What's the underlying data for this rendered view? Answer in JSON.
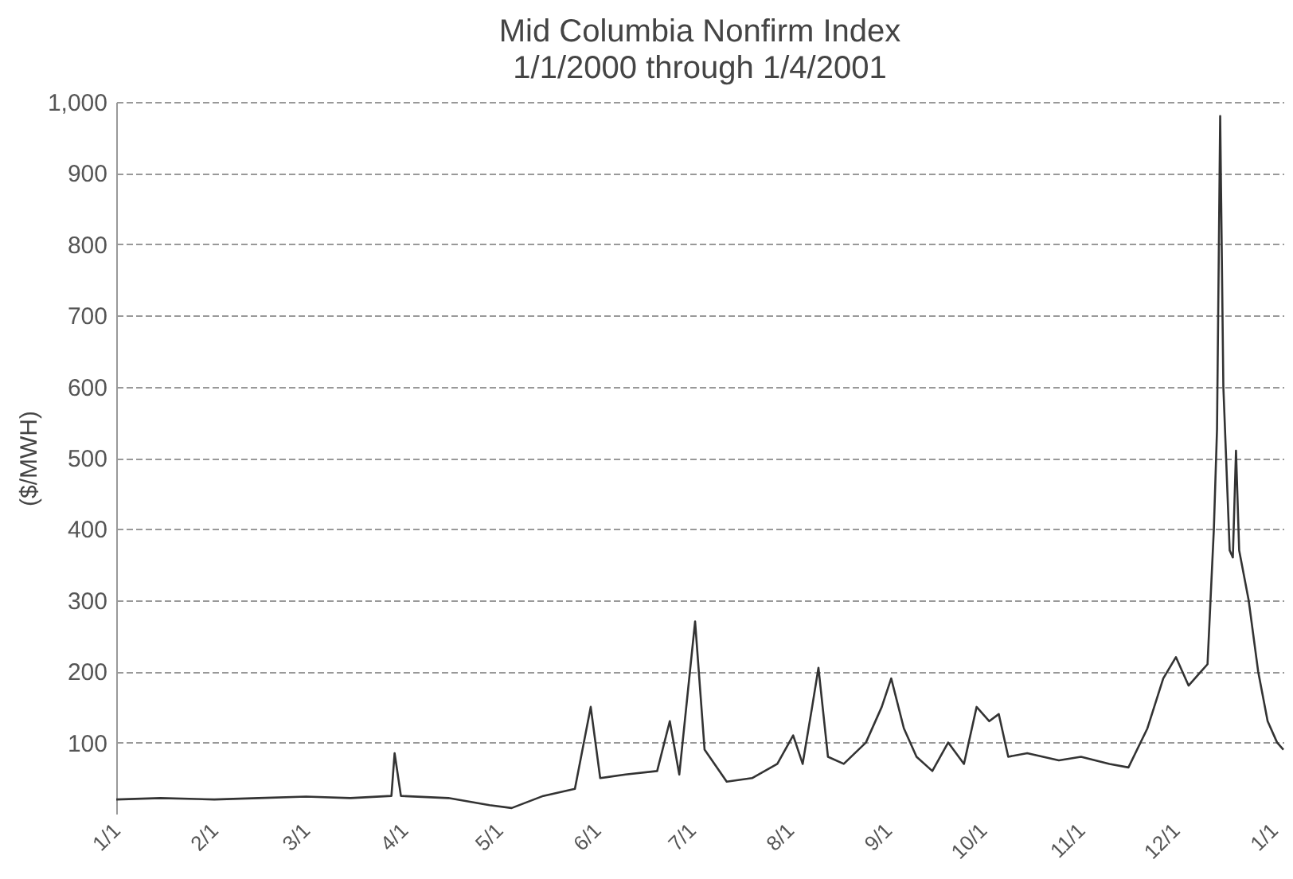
{
  "chart_data": {
    "type": "line",
    "title": "Mid Columbia Nonfirm Index",
    "subtitle": "1/1/2000 through 1/4/2001",
    "ylabel": "($/MWH)",
    "x": [
      "2000-01-01",
      "2000-01-15",
      "2000-02-01",
      "2000-02-15",
      "2000-03-01",
      "2000-03-15",
      "2000-03-28",
      "2000-03-29",
      "2000-03-31",
      "2000-04-15",
      "2000-04-28",
      "2000-05-05",
      "2000-05-15",
      "2000-05-25",
      "2000-05-30",
      "2000-06-02",
      "2000-06-10",
      "2000-06-20",
      "2000-06-24",
      "2000-06-27",
      "2000-07-02",
      "2000-07-05",
      "2000-07-12",
      "2000-07-20",
      "2000-07-28",
      "2000-08-02",
      "2000-08-05",
      "2000-08-08",
      "2000-08-10",
      "2000-08-13",
      "2000-08-18",
      "2000-08-25",
      "2000-08-30",
      "2000-09-02",
      "2000-09-06",
      "2000-09-10",
      "2000-09-15",
      "2000-09-20",
      "2000-09-25",
      "2000-09-29",
      "2000-10-03",
      "2000-10-06",
      "2000-10-09",
      "2000-10-15",
      "2000-10-25",
      "2000-11-01",
      "2000-11-10",
      "2000-11-16",
      "2000-11-22",
      "2000-11-27",
      "2000-12-01",
      "2000-12-05",
      "2000-12-09",
      "2000-12-11",
      "2000-12-13",
      "2000-12-14",
      "2000-12-15",
      "2000-12-16",
      "2000-12-18",
      "2000-12-19",
      "2000-12-20",
      "2000-12-21",
      "2000-12-24",
      "2000-12-27",
      "2000-12-30",
      "2001-01-02",
      "2001-01-04"
    ],
    "series": [
      {
        "color": "#333333",
        "values": [
          20,
          22,
          20,
          22,
          24,
          22,
          25,
          85,
          25,
          22,
          12,
          8,
          25,
          35,
          150,
          50,
          55,
          60,
          130,
          55,
          270,
          90,
          45,
          50,
          70,
          110,
          70,
          150,
          205,
          80,
          70,
          100,
          150,
          190,
          120,
          80,
          60,
          100,
          70,
          150,
          130,
          140,
          80,
          85,
          75,
          80,
          70,
          65,
          120,
          190,
          220,
          180,
          200,
          210,
          400,
          540,
          980,
          600,
          370,
          360,
          510,
          370,
          300,
          200,
          130,
          100,
          90
        ]
      }
    ],
    "xlim": [
      "2000-01-01",
      "2001-01-04"
    ],
    "xticks": [
      {
        "value": "2000-01-01",
        "label": "1/1"
      },
      {
        "value": "2000-02-01",
        "label": "2/1"
      },
      {
        "value": "2000-03-01",
        "label": "3/1"
      },
      {
        "value": "2000-04-01",
        "label": "4/1"
      },
      {
        "value": "2000-05-01",
        "label": "5/1"
      },
      {
        "value": "2000-06-01",
        "label": "6/1"
      },
      {
        "value": "2000-07-01",
        "label": "7/1"
      },
      {
        "value": "2000-08-01",
        "label": "8/1"
      },
      {
        "value": "2000-09-01",
        "label": "9/1"
      },
      {
        "value": "2000-10-01",
        "label": "10/1"
      },
      {
        "value": "2000-11-01",
        "label": "11/1"
      },
      {
        "value": "2000-12-01",
        "label": "12/1"
      },
      {
        "value": "2001-01-01",
        "label": "1/1"
      }
    ],
    "ylim": [
      0,
      1000
    ],
    "yticks": [
      100,
      200,
      300,
      400,
      500,
      600,
      700,
      800,
      900,
      {
        "value": 1000,
        "label": "1,000"
      }
    ],
    "grid": "y",
    "marker": "none",
    "line_style": "solid"
  }
}
